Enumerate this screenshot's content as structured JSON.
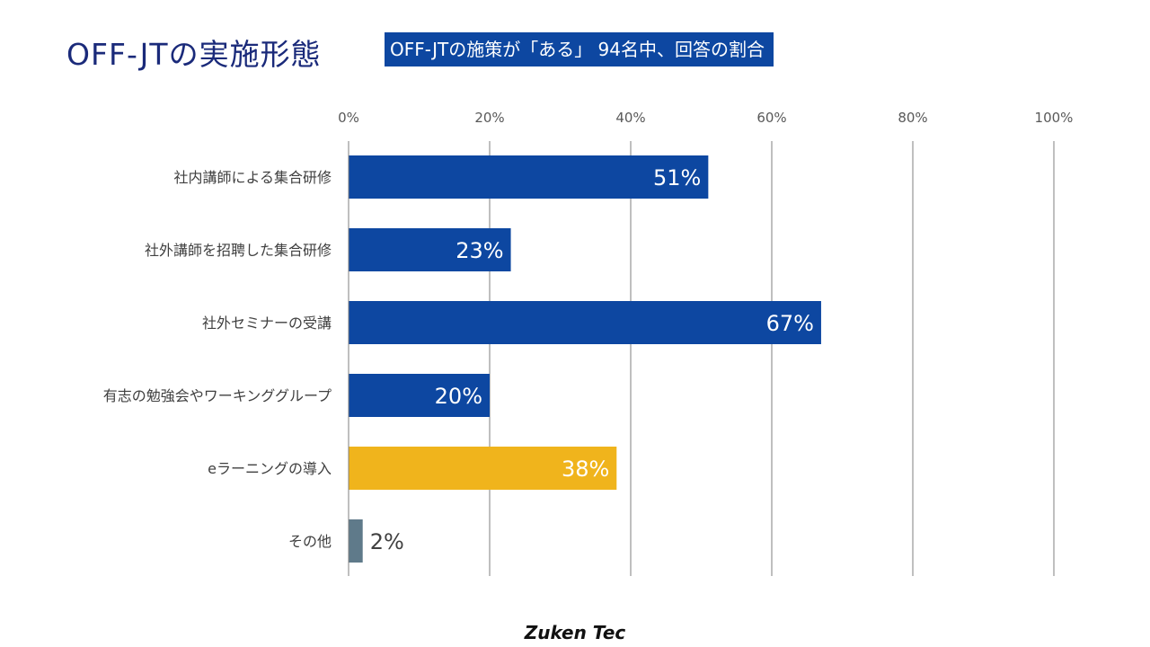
{
  "header": {
    "title": "OFF-JTの実施形態",
    "subtitle": "OFF-JTの施策が「ある」 94名中、回答の割合"
  },
  "footer": {
    "logo": "Zuken Tec"
  },
  "chart_data": {
    "type": "bar",
    "orientation": "horizontal",
    "categories": [
      "社内講師による集合研修",
      "社外講師を招聘した集合研修",
      "社外セミナーの受講",
      "有志の勉強会やワーキンググループ",
      "eラーニングの導入",
      "その他"
    ],
    "values": [
      51,
      23,
      67,
      20,
      38,
      2
    ],
    "data_labels": [
      "51%",
      "23%",
      "67%",
      "20%",
      "38%",
      "2%"
    ],
    "colors": [
      "#0d47a1",
      "#0d47a1",
      "#0d47a1",
      "#0d47a1",
      "#f0b41c",
      "#5f7a8a"
    ],
    "xlim": [
      0,
      100
    ],
    "xticks": [
      0,
      20,
      40,
      60,
      80,
      100
    ],
    "xtick_labels": [
      "0%",
      "20%",
      "40%",
      "60%",
      "80%",
      "100%"
    ],
    "xaxis_position": "top",
    "grid": true,
    "legend": "none"
  }
}
